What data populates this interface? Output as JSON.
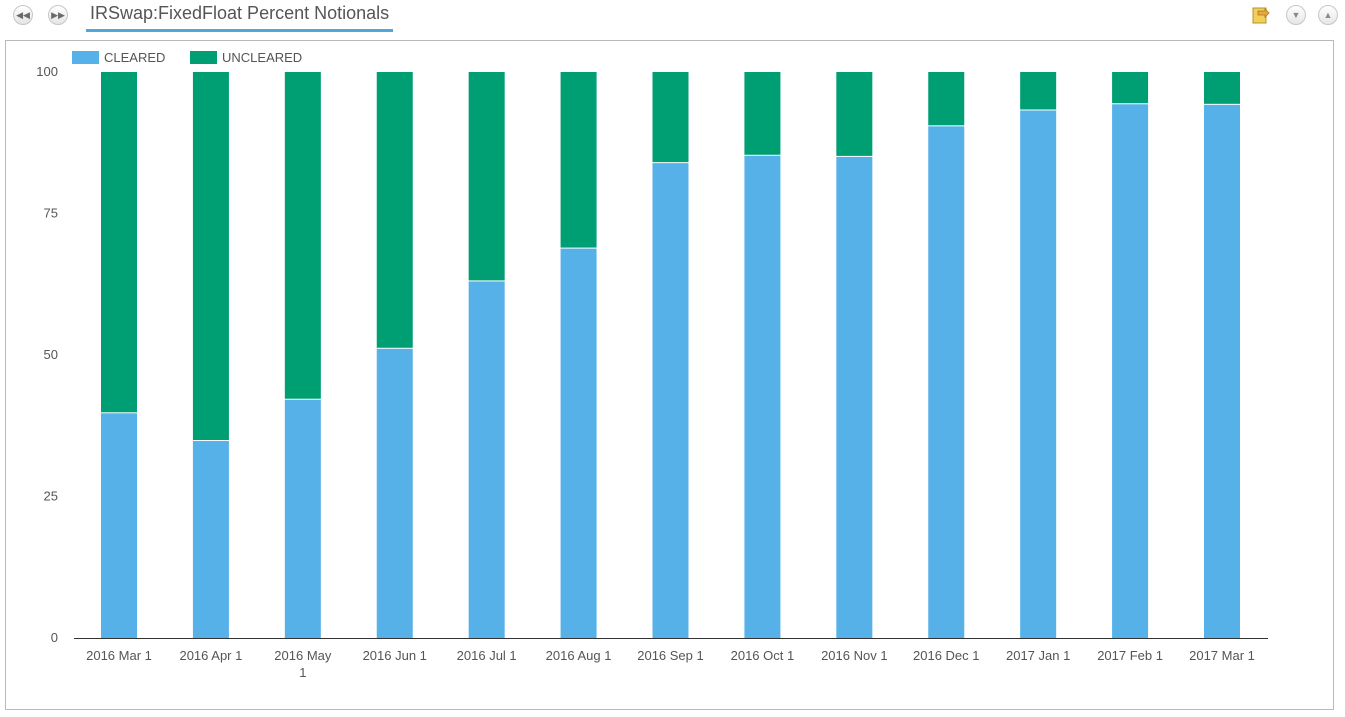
{
  "header": {
    "title": "IRSwap:FixedFloat Percent Notionals",
    "nav_prev_icon": "rewind-icon",
    "nav_next_icon": "fast-forward-icon",
    "export_icon": "export-icon",
    "collapse_icon": "chevron-double-down-icon",
    "expand_icon": "chevron-double-up-icon"
  },
  "colors": {
    "cleared": "#56b1e8",
    "uncleared": "#009e73",
    "axis": "#333333",
    "tick_text": "#555555",
    "accent": "#4fa8dc"
  },
  "chart_data": {
    "type": "bar",
    "stacked": true,
    "categories": [
      "2016 Mar 1",
      "2016 Apr 1",
      "2016 May 1",
      "2016 Jun 1",
      "2016 Jul 1",
      "2016 Aug 1",
      "2016 Sep 1",
      "2016 Oct 1",
      "2016 Nov 1",
      "2016 Dec 1",
      "2017 Jan 1",
      "2017 Feb 1",
      "2017 Mar 1"
    ],
    "category_lines": [
      [
        "2016 Mar 1"
      ],
      [
        "2016 Apr 1"
      ],
      [
        "2016 May",
        "1"
      ],
      [
        "2016 Jun 1"
      ],
      [
        "2016 Jul 1"
      ],
      [
        "2016 Aug 1"
      ],
      [
        "2016 Sep 1"
      ],
      [
        "2016 Oct 1"
      ],
      [
        "2016 Nov 1"
      ],
      [
        "2016 Dec 1"
      ],
      [
        "2017 Jan 1"
      ],
      [
        "2017 Feb 1"
      ],
      [
        "2017 Mar 1"
      ]
    ],
    "series": [
      {
        "name": "CLEARED",
        "values": [
          39.7,
          34.8,
          42.1,
          51.1,
          63.0,
          68.8,
          83.9,
          85.2,
          85.0,
          90.4,
          93.2,
          94.3,
          94.2
        ]
      },
      {
        "name": "UNCLEARED",
        "values": [
          60.3,
          65.2,
          57.9,
          48.9,
          37.0,
          31.2,
          16.1,
          14.8,
          15.0,
          9.6,
          6.8,
          5.7,
          5.8
        ]
      }
    ],
    "ylim": [
      0,
      100
    ],
    "yticks": [
      0,
      25,
      50,
      75,
      100
    ],
    "title": "",
    "xlabel": "",
    "ylabel": "",
    "legend": "top-left",
    "grid": false
  }
}
